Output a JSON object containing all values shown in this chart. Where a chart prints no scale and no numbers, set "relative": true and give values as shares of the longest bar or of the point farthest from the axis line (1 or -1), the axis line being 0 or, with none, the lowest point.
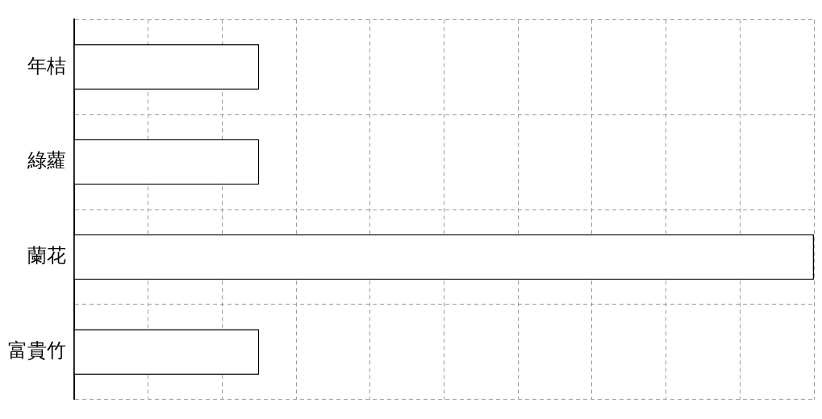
{
  "chart_data": {
    "type": "bar",
    "orientation": "horizontal",
    "relative": true,
    "categories": [
      "年桔",
      "綠蘿",
      "蘭花",
      "富貴竹"
    ],
    "values": [
      0.25,
      0.25,
      1,
      0.25
    ],
    "color": "#ffffff",
    "grid": true,
    "legend": false
  }
}
